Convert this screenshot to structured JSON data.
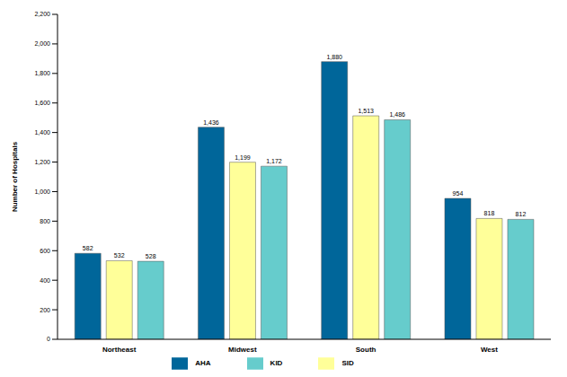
{
  "chart_data": {
    "type": "bar",
    "y_label": "Number of Hospitals",
    "categories": [
      "Northeast",
      "Midwest",
      "South",
      "West"
    ],
    "series": [
      {
        "name": "AHA",
        "color": "#00669a",
        "values": [
          582,
          1436,
          1880,
          954
        ],
        "value_labels": [
          "582",
          "1,436",
          "1,880",
          "954"
        ]
      },
      {
        "name": "SID",
        "color": "#ffff99",
        "values": [
          532,
          1199,
          1513,
          818
        ],
        "value_labels": [
          "532",
          "1,199",
          "1,513",
          "818"
        ]
      },
      {
        "name": "KID",
        "color": "#66cccc",
        "values": [
          528,
          1172,
          1486,
          812
        ],
        "value_labels": [
          "528",
          "1,172",
          "1,486",
          "812"
        ]
      }
    ],
    "ylim": [
      0,
      2200
    ],
    "yticks": [
      0,
      200,
      400,
      600,
      800,
      {
        "value": 1000,
        "label": "1,000"
      },
      {
        "value": 1200,
        "label": "1,200"
      },
      {
        "value": 1400,
        "label": "1,400"
      },
      {
        "value": 1600,
        "label": "1,600"
      },
      {
        "value": 1800,
        "label": "1,800"
      },
      {
        "value": 2000,
        "label": "2,000"
      },
      {
        "value": 2200,
        "label": "2,200"
      }
    ],
    "grid": false,
    "legend": "bottom",
    "data_labels": true
  }
}
